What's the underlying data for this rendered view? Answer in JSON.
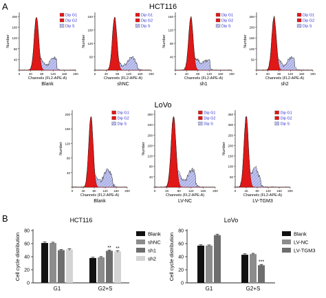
{
  "labels": {
    "panel_a": "A",
    "panel_b": "B",
    "hct_title": "HCT116",
    "lovo_title": "LoVo",
    "xlabel": "Channels (FL2-APE-A)",
    "ylabel": "Number",
    "legend_g1": "Dip G1",
    "legend_g2": "Dip G2",
    "legend_s": "Dip S"
  },
  "colors": {
    "g1_fill": "#e01818",
    "s_fill": "#b8bce8",
    "legend_text": "#2a2ad0",
    "bar_blank": "#111111",
    "bar_shnc": "#8c8c8c",
    "bar_sh1": "#6e6e6e",
    "bar_sh2": "#d4d4d4"
  },
  "histograms": [
    {
      "label": "Blank",
      "yticks": [
        "0",
        "40",
        "80",
        "120",
        "160",
        "200"
      ],
      "xticks": [
        "0",
        "40",
        "80",
        "120",
        "160",
        "200"
      ],
      "g1_peak": 61
    },
    {
      "label": "shNC",
      "yticks": [
        "0",
        "60",
        "120",
        "180",
        "240"
      ],
      "xticks": [
        "0",
        "40",
        "80",
        "120",
        "160",
        "200"
      ],
      "g1_peak": 70
    },
    {
      "label": "sh1",
      "yticks": [
        "0",
        "40",
        "80",
        "120",
        "160"
      ],
      "xticks": [
        "0",
        "40",
        "80",
        "120",
        "160",
        "200"
      ],
      "g1_peak": 55
    },
    {
      "label": "sh2",
      "yticks": [
        "0",
        "50",
        "100",
        "150",
        "200",
        "250"
      ],
      "xticks": [
        "0",
        "40",
        "80",
        "120",
        "160",
        "200"
      ],
      "g1_peak": 62
    },
    {
      "label": "Blank",
      "yticks": [
        "0",
        "40",
        "80",
        "120",
        "160",
        "200"
      ],
      "xticks": [
        "0",
        "40",
        "80",
        "120",
        "160",
        "200"
      ],
      "g1_peak": 68
    },
    {
      "label": "LV-NC",
      "yticks": [
        "0",
        "40",
        "80",
        "120",
        "160",
        "200",
        "240",
        "280"
      ],
      "xticks": [
        "0",
        "40",
        "80",
        "120",
        "160",
        "200"
      ],
      "g1_peak": 62
    },
    {
      "label": "LV-TGM3",
      "yticks": [
        "0",
        "50",
        "100",
        "150",
        "200",
        "250",
        "300",
        "350"
      ],
      "xticks": [
        "0",
        "40",
        "80",
        "120",
        "160",
        "200"
      ],
      "g1_peak": 40
    }
  ],
  "chart_data": [
    {
      "type": "bar",
      "title": "HCT116",
      "ylabel": "Cell cycle distribution",
      "categories": [
        "G1",
        "G2+S"
      ],
      "ylim": [
        0,
        80
      ],
      "yticks": [
        0,
        20,
        40,
        60,
        80
      ],
      "series": [
        {
          "name": "Blank",
          "values": [
            61,
            38
          ],
          "errors": [
            1.5,
            1.2
          ],
          "sig": [
            "",
            ""
          ]
        },
        {
          "name": "shNC",
          "values": [
            61,
            39
          ],
          "errors": [
            1.2,
            1.2
          ],
          "sig": [
            "",
            ""
          ]
        },
        {
          "name": "sh1",
          "values": [
            50,
            49
          ],
          "errors": [
            1.0,
            1.2
          ],
          "sig": [
            "",
            "**"
          ]
        },
        {
          "name": "sh2",
          "values": [
            51,
            48
          ],
          "errors": [
            1.2,
            1.2
          ],
          "sig": [
            "",
            "**"
          ]
        }
      ]
    },
    {
      "type": "bar",
      "title": "LoVo",
      "ylabel": "Cell cycle distribution",
      "categories": [
        "G1",
        "G2+S"
      ],
      "ylim": [
        0,
        80
      ],
      "yticks": [
        0,
        20,
        40,
        60,
        80
      ],
      "series": [
        {
          "name": "Blank",
          "values": [
            57,
            43
          ],
          "errors": [
            1.2,
            1.5
          ],
          "sig": [
            "",
            ""
          ]
        },
        {
          "name": "LV-NC",
          "values": [
            57,
            44
          ],
          "errors": [
            1.0,
            1.2
          ],
          "sig": [
            "",
            ""
          ]
        },
        {
          "name": "LV-TGM3",
          "values": [
            73,
            27
          ],
          "errors": [
            1.5,
            1.2
          ],
          "sig": [
            "",
            "***"
          ]
        }
      ]
    }
  ]
}
